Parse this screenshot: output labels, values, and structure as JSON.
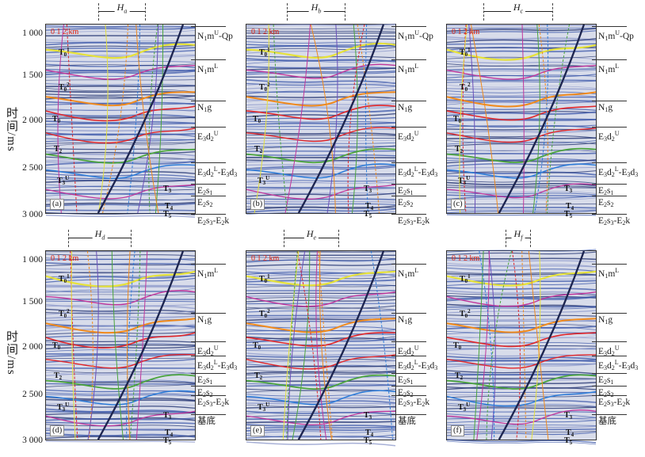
{
  "axis": {
    "ylabel": "时间/ms",
    "ticks": [
      "1 000",
      "1 500",
      "2 000",
      "2 500",
      "3 000"
    ]
  },
  "scale_bar": {
    "labels": [
      "0",
      "1",
      "2 km"
    ]
  },
  "panels": [
    {
      "id": "a",
      "label": "(a)",
      "H": "a",
      "units": [
        "N1mU-Qp",
        "N1mL",
        "N1g",
        "E3d2U",
        "E3d2L-E3d3",
        "E2s1",
        "E2s2",
        "E2s3-E2k"
      ]
    },
    {
      "id": "b",
      "label": "(b)",
      "H": "b",
      "units": [
        "N1mU-Qp",
        "N1mL",
        "N1g",
        "E3d2U",
        "E3d2L-E3d3",
        "E2s1",
        "E2s2",
        "E2s3-E2k"
      ]
    },
    {
      "id": "c",
      "label": "(c)",
      "H": "c",
      "units": [
        "N1mU-Qp",
        "N1mL",
        "N1g",
        "E3d2U",
        "E3d2L-E3d3",
        "E2s1",
        "E2s2",
        "E2s3-E2k"
      ]
    },
    {
      "id": "d",
      "label": "(d)",
      "H": "d",
      "units": [
        "N1mL",
        "N1g",
        "E3d2U",
        "E3d2L-E3d3",
        "E2s1",
        "E2s2",
        "E2s3-E2k",
        "基底"
      ]
    },
    {
      "id": "e",
      "label": "(e)",
      "H": "e",
      "units": [
        "N1mL",
        "N1g",
        "E3d2U",
        "E3d2L-E3d3",
        "E2s1",
        "E2s2",
        "E2s3-E2k",
        "基底"
      ]
    },
    {
      "id": "f",
      "label": "(f)",
      "H": "f",
      "units": [
        "N1mL",
        "N1g",
        "E3d2U",
        "E3d2L-E3d3",
        "E2s1",
        "E2s2",
        "E2s3-E2k",
        "基底"
      ]
    }
  ],
  "horizons": {
    "top_row": [
      "T01",
      "T02",
      "T0",
      "T2",
      "T3U",
      "T3",
      "T4",
      "T5"
    ],
    "bottom_row": [
      "T01",
      "T02",
      "T0",
      "T2",
      "T3U",
      "T3",
      "T4",
      "T5"
    ]
  },
  "colors": {
    "yellow": "#e6e23a",
    "orange": "#f08a1c",
    "red": "#e0262a",
    "green": "#4aa43c",
    "blue": "#2b7bd8",
    "magenta": "#c0359b",
    "purple": "#6a4fb8",
    "fault": "#1d2550"
  }
}
